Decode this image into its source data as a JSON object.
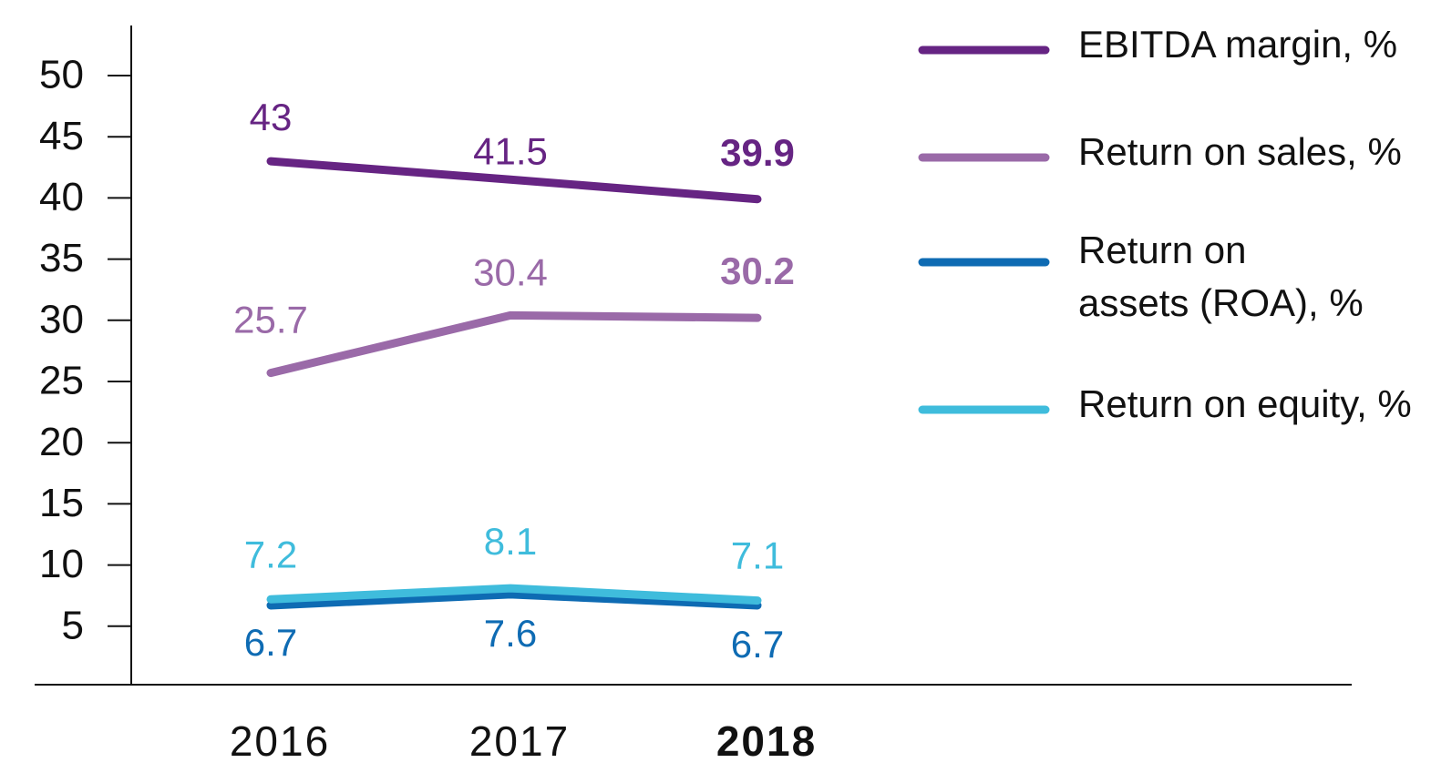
{
  "chart_data": {
    "type": "line",
    "x": [
      "2016",
      "2017",
      "2018"
    ],
    "highlight_x": "2018",
    "ylim": [
      0,
      50
    ],
    "yticks": [
      5,
      10,
      15,
      20,
      25,
      30,
      35,
      40,
      45,
      50
    ],
    "grid": false,
    "legend_position": "right",
    "series": [
      {
        "name": "EBITDA margin, %",
        "color": "#662483",
        "values": [
          43,
          41.5,
          39.9
        ],
        "labels": [
          "43",
          "41.5",
          "39.9"
        ],
        "label_side": "above"
      },
      {
        "name": "Return on sales, %",
        "color": "#9a6aa8",
        "values": [
          25.7,
          30.4,
          30.2
        ],
        "labels": [
          "25.7",
          "30.4",
          "30.2"
        ],
        "label_side": "above"
      },
      {
        "name_lines": [
          "Return on",
          "assets (ROA), %"
        ],
        "name": "Return on assets (ROA), %",
        "color": "#0e6bb3",
        "values": [
          6.7,
          7.6,
          6.7
        ],
        "labels": [
          "6.7",
          "7.6",
          "6.7"
        ],
        "label_side": "below"
      },
      {
        "name": "Return on equity, %",
        "color": "#3fbcdc",
        "values": [
          7.2,
          8.1,
          7.1
        ],
        "labels": [
          "7.2",
          "8.1",
          "7.1"
        ],
        "label_side": "above"
      }
    ]
  }
}
